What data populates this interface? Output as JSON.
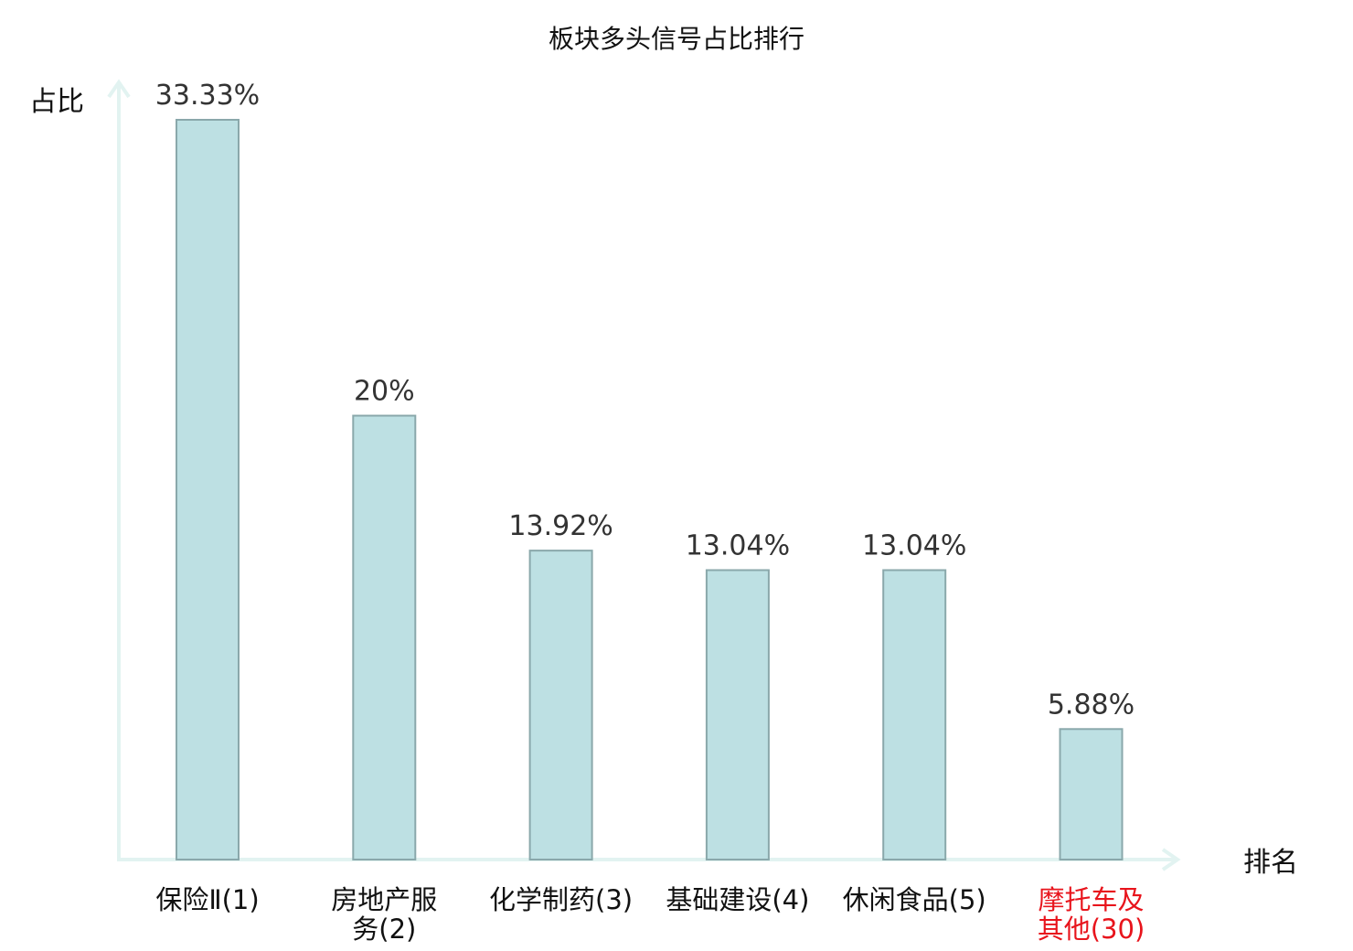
{
  "chart_data": {
    "type": "bar",
    "title": "板块多头信号占比排行",
    "ylabel": "占比",
    "xlabel": "排名",
    "ylim": [
      0,
      35
    ],
    "categories": [
      {
        "name": "保险Ⅱ",
        "rank": "(1)",
        "lines": [
          "保险Ⅱ(1)"
        ],
        "highlight": false
      },
      {
        "name": "房地产服务",
        "rank": "(2)",
        "lines": [
          "房地产服",
          "务(2)"
        ],
        "highlight": false
      },
      {
        "name": "化学制药",
        "rank": "(3)",
        "lines": [
          "化学制药(3)"
        ],
        "highlight": false
      },
      {
        "name": "基础建设",
        "rank": "(4)",
        "lines": [
          "基础建设(4)"
        ],
        "highlight": false
      },
      {
        "name": "休闲食品",
        "rank": "(5)",
        "lines": [
          "休闲食品(5)"
        ],
        "highlight": false
      },
      {
        "name": "摩托车及其他",
        "rank": "(30)",
        "lines": [
          "摩托车及",
          "其他(30)"
        ],
        "highlight": true
      }
    ],
    "values": [
      33.33,
      20,
      13.92,
      13.04,
      13.04,
      5.88
    ],
    "value_labels": [
      "33.33%",
      "20%",
      "13.92%",
      "13.04%",
      "13.04%",
      "5.88%"
    ],
    "colors": {
      "bar_fill": "#bde0e3",
      "bar_stroke": "#8aa8ab",
      "axis": "#e2f3f1",
      "highlight_text": "#e8141c",
      "normal_text": "#111111"
    },
    "grid": false
  }
}
